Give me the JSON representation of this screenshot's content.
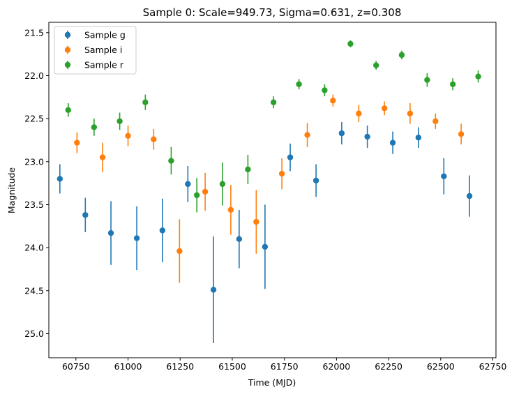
{
  "chart_data": {
    "type": "scatter",
    "title": "Sample 0: Scale=949.73, Sigma=0.631, z=0.308",
    "xlabel": "Time (MJD)",
    "ylabel": "Magnitude",
    "xlim": [
      60620,
      62765
    ],
    "ylim": [
      25.28,
      21.38
    ],
    "y_inverted": true,
    "x_ticks": [
      60750,
      61000,
      61250,
      61500,
      61750,
      62000,
      62250,
      62500,
      62750
    ],
    "y_ticks": [
      21.5,
      22.0,
      22.5,
      23.0,
      23.5,
      24.0,
      24.5,
      25.0
    ],
    "y_tick_labels": [
      "21.5",
      "22.0",
      "22.5",
      "23.0",
      "23.5",
      "24.0",
      "24.5",
      "25.0"
    ],
    "grid": false,
    "legend_position": "top-left",
    "series": [
      {
        "name": "Sample g",
        "color": "#1f77b4",
        "x": [
          60673,
          60795,
          60918,
          61042,
          61165,
          61287,
          61410,
          61533,
          61657,
          61778,
          61902,
          62025,
          62148,
          62270,
          62393,
          62515,
          62638
        ],
        "y": [
          23.2,
          23.62,
          23.83,
          23.89,
          23.8,
          23.26,
          24.49,
          23.9,
          23.99,
          22.95,
          23.22,
          22.67,
          22.71,
          22.78,
          22.72,
          23.17,
          23.4
        ],
        "yerr": [
          0.17,
          0.2,
          0.37,
          0.37,
          0.37,
          0.21,
          0.62,
          0.34,
          0.49,
          0.16,
          0.19,
          0.13,
          0.13,
          0.13,
          0.12,
          0.21,
          0.24
        ]
      },
      {
        "name": "Sample i",
        "color": "#ff7f0e",
        "x": [
          60755,
          60878,
          61000,
          61123,
          61247,
          61370,
          61493,
          61615,
          61738,
          61860,
          61983,
          62107,
          62230,
          62353,
          62475,
          62598
        ],
        "y": [
          22.78,
          22.95,
          22.7,
          22.74,
          24.04,
          23.35,
          23.56,
          23.7,
          23.14,
          22.69,
          22.29,
          22.44,
          22.38,
          22.44,
          22.53,
          22.68
        ],
        "yerr": [
          0.12,
          0.17,
          0.12,
          0.12,
          0.37,
          0.22,
          0.29,
          0.37,
          0.18,
          0.14,
          0.07,
          0.1,
          0.08,
          0.12,
          0.09,
          0.12
        ]
      },
      {
        "name": "Sample r",
        "color": "#2ca02c",
        "x": [
          60713,
          60837,
          60960,
          61083,
          61207,
          61330,
          61453,
          61575,
          61698,
          61820,
          61943,
          62067,
          62190,
          62313,
          62435,
          62558,
          62680
        ],
        "y": [
          22.4,
          22.6,
          22.53,
          22.31,
          22.99,
          23.39,
          23.26,
          23.09,
          22.31,
          22.1,
          22.17,
          21.63,
          21.88,
          21.76,
          22.05,
          22.1,
          22.01
        ],
        "yerr": [
          0.08,
          0.1,
          0.1,
          0.09,
          0.16,
          0.2,
          0.25,
          0.17,
          0.07,
          0.06,
          0.07,
          0.04,
          0.05,
          0.05,
          0.08,
          0.07,
          0.07
        ]
      }
    ]
  }
}
